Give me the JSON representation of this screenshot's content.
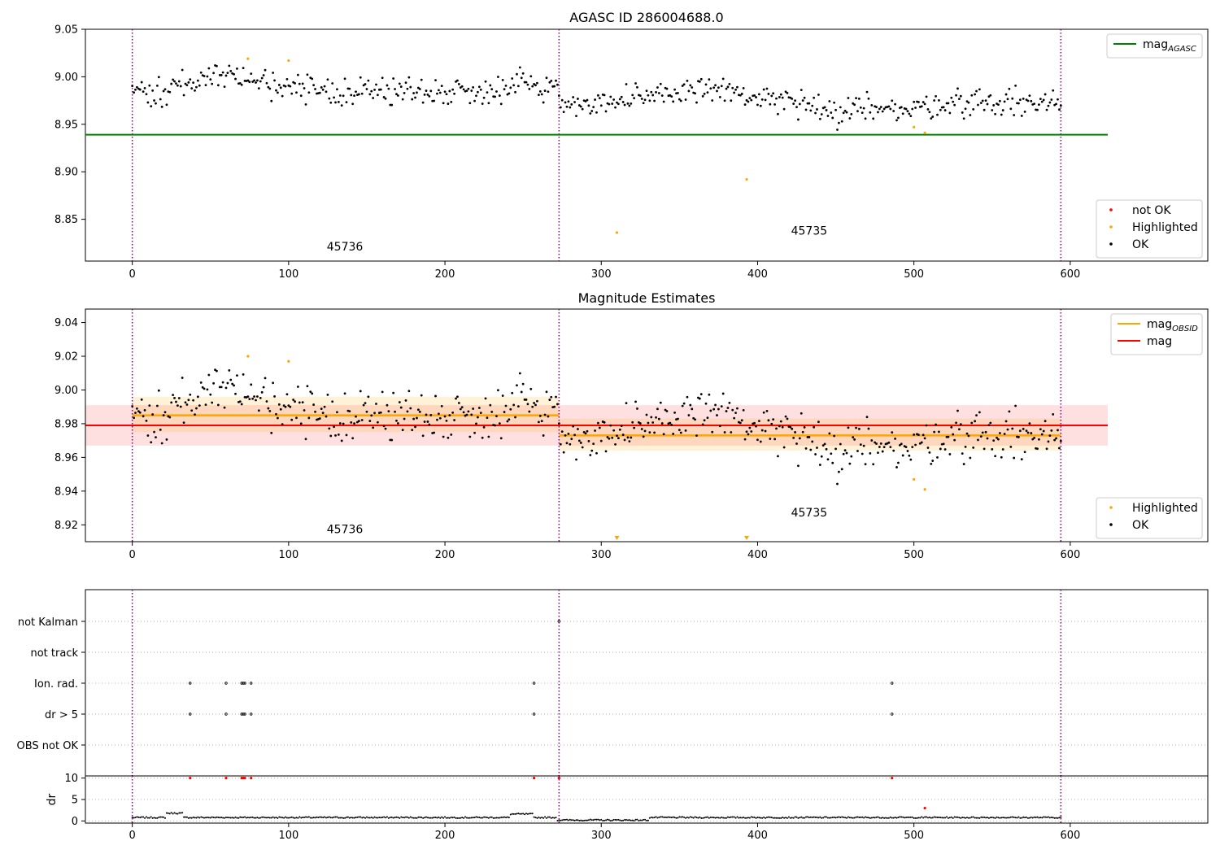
{
  "colors": {
    "ok": "#000000",
    "highlighted": "#ffa500",
    "not_ok": "#ff0000",
    "agasc_line": "#008000",
    "mag_line": "#ff0000",
    "obsid_line": "#ffa500",
    "obs_boundary": "#800080",
    "grid": "#b0b0b0"
  },
  "chart_data": [
    {
      "type": "scatter",
      "title": "AGASC ID 286004688.0",
      "xlim": [
        -30,
        688
      ],
      "ylim": [
        8.806,
        9.05
      ],
      "xticks": [
        0,
        100,
        200,
        300,
        400,
        500,
        600
      ],
      "yticks": [
        8.85,
        8.9,
        8.95,
        9.0,
        9.05
      ],
      "ytick_labels": [
        "8.85",
        "8.90",
        "8.95",
        "9.00",
        "9.05"
      ],
      "obs_boundaries": [
        0,
        273,
        594
      ],
      "obs_labels": [
        {
          "text": "45736",
          "x": 136,
          "y": 8.817
        },
        {
          "text": "45735",
          "x": 433,
          "y": 8.834
        }
      ],
      "agasc_line": {
        "y": 8.939,
        "x_end": 624
      },
      "series": [
        {
          "name": "OK",
          "role": "ok",
          "model": {
            "segments": [
              [
                0,
                273,
                8.985
              ],
              [
                273,
                594,
                8.973
              ]
            ],
            "bumps": [
              [
                60,
                25,
                0.018
              ],
              [
                250,
                15,
                0.01
              ],
              [
                365,
                30,
                0.015
              ],
              [
                450,
                15,
                -0.015
              ],
              [
                495,
                12,
                -0.01
              ]
            ],
            "jitter": 0.009,
            "seed": 11
          }
        },
        {
          "name": "Highlighted",
          "role": "highlighted",
          "points": [
            [
              74,
              9.019
            ],
            [
              100,
              9.017
            ],
            [
              310,
              8.836
            ],
            [
              393,
              8.892
            ],
            [
              500,
              8.947
            ],
            [
              507,
              8.941
            ]
          ]
        },
        {
          "name": "not OK",
          "role": "not_ok",
          "points": []
        }
      ],
      "legend_lines": [
        {
          "label": "mag",
          "sub": "AGASC",
          "role": "agasc_line"
        }
      ],
      "legend_points": [
        {
          "label": "not OK",
          "role": "not_ok"
        },
        {
          "label": "Highlighted",
          "role": "highlighted"
        },
        {
          "label": "OK",
          "role": "ok"
        }
      ]
    },
    {
      "type": "scatter",
      "title": "Magnitude Estimates",
      "xlim": [
        -30,
        688
      ],
      "ylim": [
        8.91,
        9.048
      ],
      "xticks": [
        0,
        100,
        200,
        300,
        400,
        500,
        600
      ],
      "yticks": [
        8.92,
        8.94,
        8.96,
        8.98,
        9.0,
        9.02,
        9.04
      ],
      "ytick_labels": [
        "8.92",
        "8.94",
        "8.96",
        "8.98",
        "9.00",
        "9.02",
        "9.04"
      ],
      "obs_boundaries": [
        0,
        273,
        594
      ],
      "obs_labels": [
        {
          "text": "45736",
          "x": 136,
          "y": 8.915
        },
        {
          "text": "45735",
          "x": 433,
          "y": 8.925
        }
      ],
      "mag_line": {
        "y": 8.979,
        "band": [
          8.967,
          8.991
        ],
        "x_end": 624
      },
      "obsid_segments": [
        {
          "x0": 0,
          "x1": 273,
          "y": 8.985,
          "band": [
            8.975,
            8.996
          ]
        },
        {
          "x0": 273,
          "x1": 594,
          "y": 8.973,
          "band": [
            8.964,
            8.983
          ]
        }
      ],
      "series": [
        {
          "name": "OK",
          "role": "ok",
          "model": "same-as-top"
        },
        {
          "name": "Highlighted",
          "role": "highlighted",
          "points": [
            [
              74,
              9.02
            ],
            [
              100,
              9.017
            ],
            [
              500,
              8.947
            ],
            [
              507,
              8.941
            ]
          ]
        }
      ],
      "offscale_markers": [
        310,
        393
      ],
      "legend_lines": [
        {
          "label": "mag",
          "sub": "OBSID",
          "role": "obsid_line"
        },
        {
          "label": "mag",
          "sub": "",
          "role": "mag_line"
        }
      ],
      "legend_points": [
        {
          "label": "Highlighted",
          "role": "highlighted"
        },
        {
          "label": "OK",
          "role": "ok"
        }
      ]
    },
    {
      "type": "scatter",
      "title": "",
      "xlim": [
        -30,
        688
      ],
      "flag_rows": [
        "not Kalman",
        "not track",
        "Ion. rad.",
        "dr > 5",
        "OBS not OK"
      ],
      "flag_points": {
        "not Kalman": [
          273
        ],
        "not track": [],
        "Ion. rad.": [
          37,
          60,
          70,
          71,
          72,
          76,
          257,
          486
        ],
        "dr > 5": [
          37,
          60,
          70,
          71,
          72,
          76,
          257,
          486
        ],
        "OBS not OK": []
      },
      "obs_boundaries": [
        0,
        273,
        594
      ]
    },
    {
      "type": "scatter",
      "title": "",
      "xlim": [
        -30,
        688
      ],
      "ylim": [
        -0.5,
        10.5
      ],
      "ylabel": "dr",
      "yticks": [
        0,
        5,
        10
      ],
      "ytick_labels": [
        "0",
        "5",
        "10"
      ],
      "xticks": [
        0,
        100,
        200,
        300,
        400,
        500,
        600
      ],
      "obs_boundaries": [
        0,
        273,
        594
      ],
      "dr_model": {
        "base": 0.8,
        "high_ranges": [
          [
            22,
            32,
            1.8
          ],
          [
            242,
            256,
            1.6
          ]
        ],
        "low_ranges": [
          [
            272,
            330,
            0.2
          ]
        ],
        "jitter": 0.3,
        "seed": 7
      },
      "dr_outliers_red": [
        [
          37,
          10
        ],
        [
          60,
          10
        ],
        [
          70,
          10
        ],
        [
          71,
          10
        ],
        [
          72,
          10
        ],
        [
          76,
          10
        ],
        [
          257,
          10
        ],
        [
          273,
          10
        ],
        [
          486,
          10
        ],
        [
          507,
          3
        ]
      ]
    }
  ]
}
